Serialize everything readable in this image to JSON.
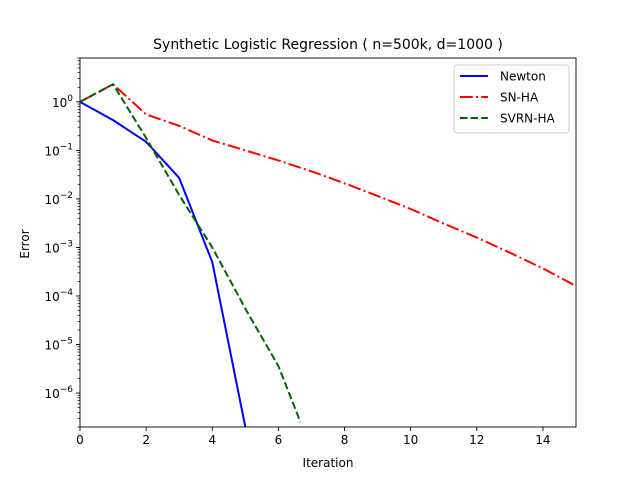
{
  "chart_data": {
    "type": "line",
    "title": "Synthetic Logistic Regression ( n=500k, d=1000 )",
    "xlabel": "Iteration",
    "ylabel": "Error",
    "xscale": "linear",
    "yscale": "log",
    "xlim": [
      0,
      15
    ],
    "ylim": [
      2e-07,
      8
    ],
    "grid": false,
    "legend_position": "upper-right",
    "x_ticks": [
      {
        "value": 0,
        "label": "0"
      },
      {
        "value": 2,
        "label": "2"
      },
      {
        "value": 4,
        "label": "4"
      },
      {
        "value": 6,
        "label": "6"
      },
      {
        "value": 8,
        "label": "8"
      },
      {
        "value": 10,
        "label": "10"
      },
      {
        "value": 12,
        "label": "12"
      },
      {
        "value": 14,
        "label": "14"
      }
    ],
    "y_ticks": [
      {
        "value": 1,
        "base": "10",
        "exp": "0"
      },
      {
        "value": 0.1,
        "base": "10",
        "exp": "−1"
      },
      {
        "value": 0.01,
        "base": "10",
        "exp": "−2"
      },
      {
        "value": 0.001,
        "base": "10",
        "exp": "−3"
      },
      {
        "value": 0.0001,
        "base": "10",
        "exp": "−4"
      },
      {
        "value": 1e-05,
        "base": "10",
        "exp": "−5"
      },
      {
        "value": 1e-06,
        "base": "10",
        "exp": "−6"
      }
    ],
    "series": [
      {
        "name": "Newton",
        "color": "#0000ff",
        "dash": "solid",
        "x": [
          0,
          1,
          2,
          3,
          4,
          5
        ],
        "y": [
          1.0,
          0.42,
          0.15,
          0.027,
          0.0005,
          2e-07
        ]
      },
      {
        "name": "SN-HA",
        "color": "#ff0000",
        "dash": "dashdot",
        "x": [
          0,
          1,
          2,
          3,
          4,
          5,
          6,
          7,
          8,
          9,
          10,
          11,
          12,
          13,
          14,
          15
        ],
        "y": [
          1.0,
          2.3,
          0.55,
          0.32,
          0.16,
          0.1,
          0.062,
          0.037,
          0.021,
          0.0115,
          0.0062,
          0.0031,
          0.0016,
          0.00078,
          0.00037,
          0.00016
        ]
      },
      {
        "name": "SVRN-HA",
        "color": "#006400",
        "dash": "dashed",
        "x": [
          0,
          1,
          2,
          3,
          4,
          5,
          6,
          6.67
        ],
        "y": [
          1.0,
          2.3,
          0.18,
          0.012,
          0.001,
          5.5e-05,
          3.6e-06,
          2.5e-07
        ]
      }
    ]
  }
}
